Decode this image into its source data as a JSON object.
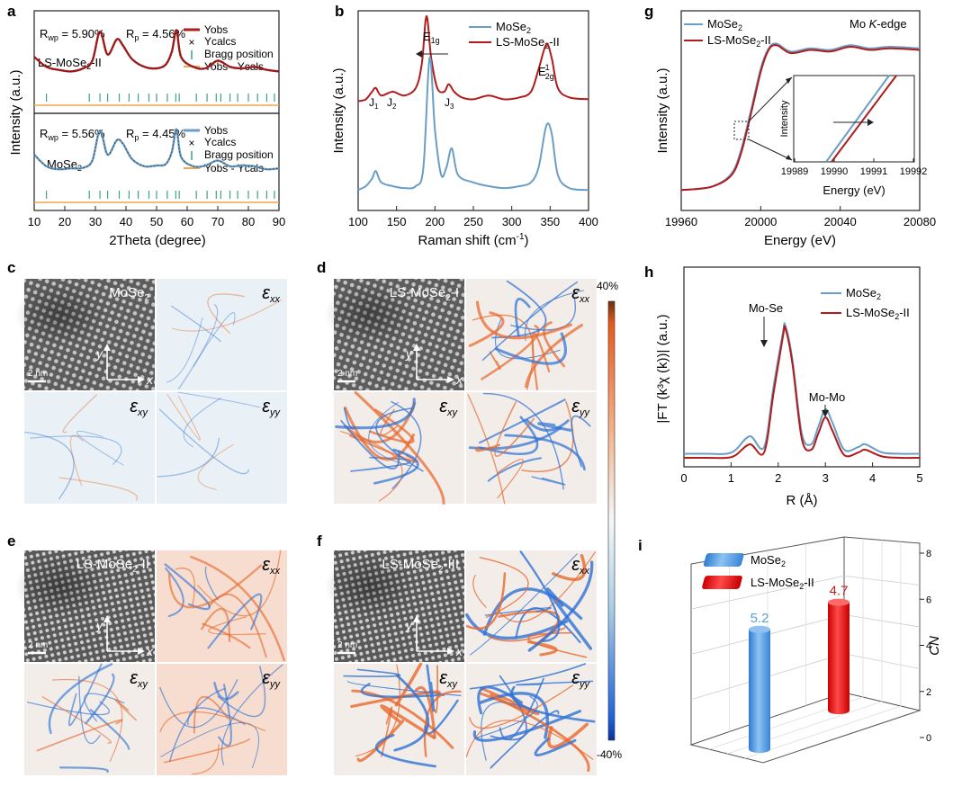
{
  "panels": {
    "a": {
      "letter": "a",
      "top": {
        "rwp": "R",
        "rwp_sub": "wp",
        "rwp_val": " = 5.90%",
        "rp": "R",
        "rp_sub": "p",
        "rp_val": " = 4.56%",
        "sample": "LS-MoSe",
        "sample_sub": "2",
        "sample_tail": "-II"
      },
      "bottom": {
        "rwp": "R",
        "rwp_sub": "wp",
        "rwp_val": " = 5.56%",
        "rp": "R",
        "rp_sub": "p",
        "rp_val": " = 4.45%",
        "sample": "MoSe",
        "sample_sub": "2"
      },
      "legend_top": [
        "Yobs",
        "Ycalcs",
        "Bragg position",
        "Yobs - Ycals"
      ],
      "legend_bottom": [
        "Yobs",
        "Ycalcs",
        "Bragg position",
        "Yobs - Ycals"
      ],
      "ylabel": "Intensity (a.u.)",
      "xlabel": "2Theta (degree)",
      "xticks": [
        "10",
        "20",
        "30",
        "40",
        "50",
        "60",
        "70",
        "80",
        "90"
      ]
    },
    "b": {
      "letter": "b",
      "legend": [
        {
          "main": "MoSe",
          "sub": "2",
          "tail": ""
        },
        {
          "main": "LS-MoSe",
          "sub": "2",
          "tail": "-II"
        }
      ],
      "ylabel": "Intensity (a.u.)",
      "xlabel": "Raman shift (cm",
      "xlabel_sup": "-1",
      "xlabel_tail": ")",
      "xticks": [
        "100",
        "150",
        "200",
        "250",
        "300",
        "350",
        "400"
      ],
      "peaks": {
        "j1": "J",
        "j1_sub": "1",
        "j2": "J",
        "j2_sub": "2",
        "j3": "J",
        "j3_sub": "3",
        "e1g": "E",
        "e1g_sub": "1g",
        "e12g": "E",
        "e12g_sup": "1",
        "e12g_sub": "2g"
      }
    },
    "g": {
      "letter": "g",
      "legend": [
        {
          "main": "MoSe",
          "sub": "2",
          "tail": ""
        },
        {
          "main": "LS-MoSe",
          "sub": "2",
          "tail": "-II"
        }
      ],
      "edge_label": "Mo ",
      "edge_italic": "K",
      "edge_tail": "-edge",
      "ylabel": "Intensity (a.u.)",
      "xlabel": "Energy (eV)",
      "xticks": [
        "19960",
        "20000",
        "20040",
        "20080"
      ],
      "inset": {
        "ylabel": "Intensity",
        "xlabel": "Energy  (eV)",
        "xticks": [
          "19989",
          "19990",
          "19991",
          "19992"
        ]
      }
    },
    "c": {
      "letter": "c",
      "title": "MoSe",
      "title_sub": "2",
      "scale": "2 nm",
      "axis_y": "y",
      "axis_x": "x",
      "eps": "ε",
      "xx": "xx",
      "xy": "xy",
      "yy": "yy"
    },
    "d": {
      "letter": "d",
      "title": "LS-MoSe",
      "title_sub": "2",
      "title_tail": "-I",
      "scale": "2 nm",
      "axis_y": "y",
      "axis_x": "x",
      "eps": "ε",
      "xx": "xx",
      "xy": "xy",
      "yy": "yy"
    },
    "e": {
      "letter": "e",
      "title": "LS-MoSe",
      "title_sub": "2",
      "title_tail": "-II",
      "scale": "2 nm",
      "axis_y": "y",
      "axis_x": "x",
      "eps": "ε",
      "xx": "xx",
      "xy": "xy",
      "yy": "yy"
    },
    "f": {
      "letter": "f",
      "title": "LS-MoSe",
      "title_sub": "2",
      "title_tail": "-III",
      "scale": "2 nm",
      "axis_y": "y",
      "axis_x": "x",
      "eps": "ε",
      "xx": "xx",
      "xy": "xy",
      "yy": "yy"
    },
    "colorbar": {
      "max": "40%",
      "min": "-40%"
    },
    "h": {
      "letter": "h",
      "legend": [
        {
          "main": "MoSe",
          "sub": "2",
          "tail": ""
        },
        {
          "main": "LS-MoSe",
          "sub": "2",
          "tail": "-II"
        }
      ],
      "ylabel": "|FT (k³χ (k))| (a.u.)",
      "xlabel": "R (Å)",
      "xticks": [
        "0",
        "1",
        "2",
        "3",
        "4",
        "5"
      ],
      "ann_mose": "Mo-Se",
      "ann_momo": "Mo-Mo"
    },
    "i": {
      "letter": "i",
      "legend": [
        {
          "main": "MoSe",
          "sub": "2",
          "tail": ""
        },
        {
          "main": "LS-MoSe",
          "sub": "2",
          "tail": "-II"
        }
      ],
      "zlabel": "CN",
      "zticks": [
        "0",
        "2",
        "4",
        "6",
        "8"
      ]
    }
  },
  "colors": {
    "red": "#b01c1c",
    "blue": "#6a9ec6",
    "green": "#3aa67a",
    "orange": "#f0a64a",
    "bar_blue": "#4a90d9",
    "bar_red": "#e01b1b"
  },
  "chart_data": [
    {
      "type": "line",
      "panel": "a",
      "xlabel": "2Theta (degree)",
      "ylabel": "Intensity (a.u.)",
      "xlim": [
        10,
        90
      ],
      "series": [
        {
          "name": "Yobs",
          "x": [
            10,
            14,
            18,
            22,
            26,
            29,
            31.5,
            34,
            37,
            39,
            42,
            46,
            50,
            53,
            55,
            56.5,
            58,
            62,
            66,
            70,
            74,
            78,
            82,
            86,
            90
          ],
          "y": [
            0.55,
            0.42,
            0.38,
            0.36,
            0.4,
            0.5,
            0.88,
            0.58,
            0.78,
            0.7,
            0.52,
            0.42,
            0.4,
            0.45,
            0.62,
            0.9,
            0.55,
            0.42,
            0.4,
            0.5,
            0.42,
            0.4,
            0.42,
            0.38,
            0.36
          ]
        }
      ]
    },
    {
      "type": "line",
      "panel": "b",
      "xlabel": "Raman shift (cm-1)",
      "ylabel": "Intensity (a.u.)",
      "xlim": [
        100,
        400
      ],
      "series": [
        {
          "name": "MoSe2",
          "x": [
            100,
            110,
            118,
            123,
            130,
            145,
            160,
            175,
            185,
            193,
            200,
            208,
            215,
            222,
            230,
            250,
            270,
            290,
            310,
            325,
            335,
            345,
            352,
            360,
            375,
            400
          ],
          "y": [
            0.08,
            0.1,
            0.14,
            0.18,
            0.12,
            0.1,
            0.09,
            0.1,
            0.2,
            0.78,
            0.4,
            0.16,
            0.2,
            0.3,
            0.16,
            0.12,
            0.1,
            0.09,
            0.1,
            0.12,
            0.2,
            0.42,
            0.38,
            0.16,
            0.09,
            0.08
          ]
        },
        {
          "name": "LS-MoSe2-II",
          "x": [
            100,
            110,
            118,
            123,
            130,
            145,
            160,
            175,
            183,
            189,
            195,
            203,
            212,
            218,
            225,
            235,
            250,
            270,
            290,
            310,
            325,
            335,
            345,
            352,
            360,
            375,
            400
          ],
          "y": [
            0.55,
            0.56,
            0.6,
            0.62,
            0.58,
            0.6,
            0.58,
            0.62,
            0.75,
            1.0,
            0.78,
            0.62,
            0.6,
            0.64,
            0.6,
            0.57,
            0.56,
            0.58,
            0.56,
            0.57,
            0.6,
            0.72,
            0.85,
            0.78,
            0.62,
            0.57,
            0.56
          ]
        }
      ]
    },
    {
      "type": "line",
      "panel": "g",
      "xlabel": "Energy (eV)",
      "ylabel": "Intensity (a.u.)",
      "xlim": [
        19960,
        20080
      ],
      "series": [
        {
          "name": "MoSe2",
          "x": [
            19960,
            19975,
            19985,
            19990,
            19995,
            20000,
            20004,
            20008,
            20015,
            20025,
            20035,
            20045,
            20055,
            20065,
            20080
          ],
          "y": [
            0.05,
            0.07,
            0.15,
            0.3,
            0.55,
            0.82,
            0.95,
            0.98,
            0.93,
            0.95,
            0.94,
            0.97,
            0.95,
            0.96,
            0.95
          ]
        },
        {
          "name": "LS-MoSe2-II",
          "x": [
            19960,
            19975,
            19985,
            19990,
            19995,
            20000,
            20004,
            20008,
            20015,
            20025,
            20035,
            20045,
            20055,
            20065,
            20080
          ],
          "y": [
            0.05,
            0.07,
            0.14,
            0.28,
            0.53,
            0.8,
            0.94,
            0.97,
            0.92,
            0.94,
            0.93,
            0.96,
            0.94,
            0.95,
            0.94
          ]
        }
      ]
    },
    {
      "type": "line",
      "panel": "h",
      "xlabel": "R (Å)",
      "ylabel": "|FT (k3χ (k))| (a.u.)",
      "xlim": [
        0,
        5
      ],
      "series": [
        {
          "name": "MoSe2",
          "x": [
            0,
            0.5,
            0.9,
            1.1,
            1.4,
            1.7,
            1.9,
            2.1,
            2.15,
            2.3,
            2.5,
            2.7,
            2.85,
            3.0,
            3.15,
            3.4,
            3.7,
            3.85,
            4.2,
            4.6,
            5.0
          ],
          "y": [
            0.05,
            0.05,
            0.05,
            0.08,
            0.18,
            0.1,
            0.55,
            0.95,
            1.0,
            0.75,
            0.2,
            0.12,
            0.25,
            0.38,
            0.28,
            0.08,
            0.1,
            0.12,
            0.06,
            0.05,
            0.05
          ]
        },
        {
          "name": "LS-MoSe2-II",
          "x": [
            0,
            0.5,
            0.9,
            1.1,
            1.4,
            1.7,
            1.9,
            2.1,
            2.15,
            2.3,
            2.5,
            2.7,
            2.85,
            3.0,
            3.15,
            3.4,
            3.7,
            3.85,
            4.2,
            4.6,
            5.0
          ],
          "y": [
            0.02,
            0.02,
            0.02,
            0.04,
            0.12,
            0.06,
            0.5,
            0.92,
            0.98,
            0.72,
            0.16,
            0.08,
            0.2,
            0.32,
            0.22,
            0.04,
            0.06,
            0.08,
            0.03,
            0.02,
            0.02
          ]
        }
      ]
    },
    {
      "type": "bar",
      "panel": "i",
      "categories": [
        "MoSe2",
        "LS-MoSe2-II"
      ],
      "values": [
        5.2,
        4.7
      ],
      "value_labels": [
        "5.2",
        "4.7"
      ],
      "zlabel": "CN",
      "zlim": [
        0,
        8
      ]
    }
  ]
}
